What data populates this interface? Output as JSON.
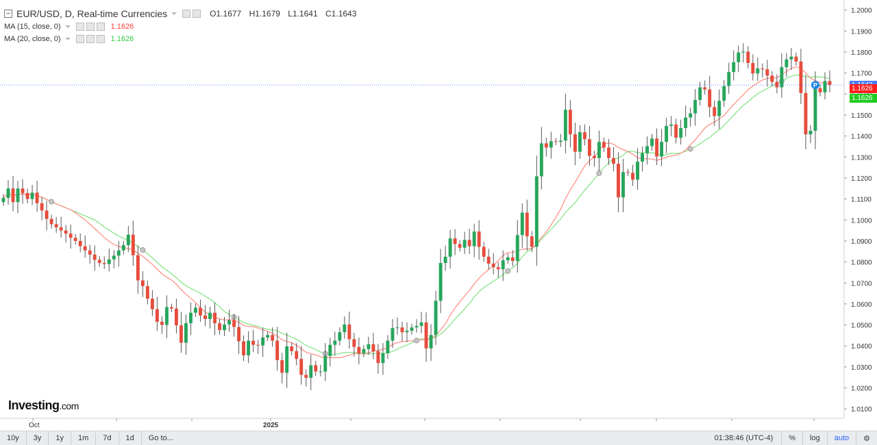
{
  "header": {
    "symbol_title": "EUR/USD, D, Real-time Currencies",
    "ohlc": {
      "open": "O1.1677",
      "high": "H1.1679",
      "low": "L1.1641",
      "close": "C1.1643"
    },
    "ma1": {
      "label": "MA (15, close, 0)",
      "value": "1.1626",
      "color": "#ff3b30"
    },
    "ma2": {
      "label": "MA (20, close, 0)",
      "value": "1.1626",
      "color": "#2ecc40"
    }
  },
  "price_tags": {
    "last": "1.1643",
    "ma1": "1.1626",
    "ma2": "1.1626"
  },
  "logo": {
    "name": "Investing",
    "suffix": ".com"
  },
  "toolbar": {
    "ranges": [
      "10y",
      "3y",
      "1y",
      "1m",
      "7d",
      "1d"
    ],
    "goto": "Go to...",
    "time": "01:38:46 (UTC-4)",
    "percent": "%",
    "log": "log",
    "auto": "auto"
  },
  "colors": {
    "up": "#26a65b",
    "down": "#e74c3c",
    "wick": "#555555",
    "last_line": "#4a7cff"
  },
  "chart_data": {
    "type": "candlestick",
    "series": [
      {
        "name": "EUR/USD",
        "values": [
          1.1105,
          1.115,
          1.1085,
          1.115,
          1.1128,
          1.11,
          1.113,
          1.108,
          1.1045,
          1.1005,
          1.098,
          1.0965,
          1.095,
          1.0935,
          1.0915,
          1.09,
          1.0875,
          1.0855,
          1.0835,
          1.081,
          1.0795,
          1.079,
          1.0812,
          1.083,
          1.0855,
          1.088,
          1.093,
          1.0832,
          1.0712,
          1.0685,
          1.0625,
          1.0575,
          1.0515,
          1.05,
          1.0585,
          1.0578,
          1.0498,
          1.0415,
          1.0508,
          1.0558,
          1.0582,
          1.0545,
          1.0528,
          1.0558,
          1.0508,
          1.0475,
          1.0502,
          1.0522,
          1.049,
          1.0422,
          1.0355,
          1.0425,
          1.0405,
          1.0402,
          1.044,
          1.0452,
          1.0425,
          1.0332,
          1.0272,
          1.0398,
          1.0375,
          1.0338,
          1.0262,
          1.0248,
          1.0308,
          1.0278,
          1.0278,
          1.0352,
          1.0405,
          1.0425,
          1.0465,
          1.0502,
          1.0432,
          1.0395,
          1.0365,
          1.0385,
          1.0408,
          1.0375,
          1.0318,
          1.0365,
          1.0425,
          1.0485,
          1.0488,
          1.0465,
          1.0472,
          1.0488,
          1.0495,
          1.0512,
          1.0388,
          1.0452,
          1.0615,
          1.0795,
          1.0825,
          1.0912,
          1.0885,
          1.0868,
          1.0905,
          1.0875,
          1.0945,
          1.0872,
          1.0825,
          1.0792,
          1.0775,
          1.0765,
          1.0808,
          1.0822,
          1.0805,
          1.0928,
          1.1035,
          1.0922,
          1.0872,
          1.1208,
          1.1365,
          1.1345,
          1.1375,
          1.1372,
          1.1378,
          1.1525,
          1.1408,
          1.1325,
          1.1418,
          1.1385,
          1.1305,
          1.1295,
          1.1372,
          1.1345,
          1.1295,
          1.1268,
          1.1108,
          1.1228,
          1.1225,
          1.1192,
          1.1278,
          1.1318,
          1.1352,
          1.1388,
          1.1302,
          1.1372,
          1.1448,
          1.1455,
          1.1392,
          1.1438,
          1.1488,
          1.1508,
          1.1572,
          1.1632,
          1.1622,
          1.1538,
          1.1495,
          1.1568,
          1.1638,
          1.1705,
          1.1752,
          1.1798,
          1.1802,
          1.1748,
          1.1698,
          1.1722,
          1.1718,
          1.1688,
          1.1658,
          1.1632,
          1.1728,
          1.1765,
          1.1778,
          1.1755,
          1.1605,
          1.1408,
          1.1425,
          1.1628,
          1.1608,
          1.1662,
          1.1643
        ]
      }
    ],
    "ylabel": "",
    "y_ticks": [
      1.01,
      1.02,
      1.03,
      1.04,
      1.05,
      1.06,
      1.07,
      1.08,
      1.09,
      1.1,
      1.11,
      1.12,
      1.13,
      1.14,
      1.15,
      1.16,
      1.17,
      1.18,
      1.19,
      1.2
    ],
    "x_tick_labels": [
      "Oct",
      "2025"
    ],
    "ylim": [
      1.0055,
      1.2035
    ],
    "grid": false,
    "last_price": 1.1643,
    "moving_averages": [
      {
        "name": "MA (15, close, 0)",
        "last": 1.1626
      },
      {
        "name": "MA (20, close, 0)",
        "last": 1.1626
      }
    ]
  }
}
